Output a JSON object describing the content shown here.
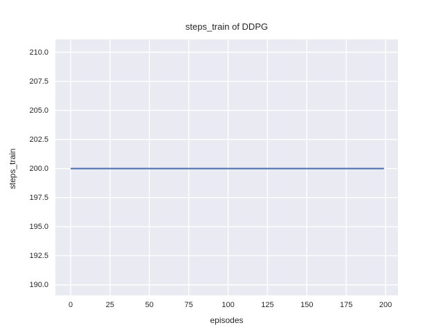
{
  "figure": {
    "title": "steps_train of DDPG",
    "xlabel": "episodes",
    "ylabel": "steps_train"
  },
  "chart_data": {
    "type": "line",
    "title": "steps_train of DDPG",
    "xlabel": "episodes",
    "ylabel": "steps_train",
    "series": [
      {
        "name": "steps_train",
        "x": [
          0,
          199
        ],
        "y": [
          200,
          200
        ],
        "color": "#4c72b0",
        "note": "constant value 200 for every episode from 0 to 199"
      }
    ],
    "xlim": [
      -9.7,
      207.9
    ],
    "ylim": [
      189.1,
      211.1
    ],
    "xticks": {
      "values": [
        0,
        25,
        50,
        75,
        100,
        125,
        150,
        175,
        200
      ],
      "labels": [
        "0",
        "25",
        "50",
        "75",
        "100",
        "125",
        "150",
        "175",
        "200"
      ]
    },
    "yticks": {
      "values": [
        190,
        192.5,
        195,
        197.5,
        200,
        202.5,
        205,
        207.5,
        210
      ],
      "labels": [
        "190.0",
        "192.5",
        "195.0",
        "197.5",
        "200.0",
        "202.5",
        "205.0",
        "207.5",
        "210.0"
      ]
    },
    "grid": true,
    "legend": false,
    "style": {
      "plot_bg": "#eaeaf2",
      "grid_color": "#ffffff",
      "text_color": "#262626",
      "line_width": 2.2,
      "grid_width": 1.4
    }
  }
}
